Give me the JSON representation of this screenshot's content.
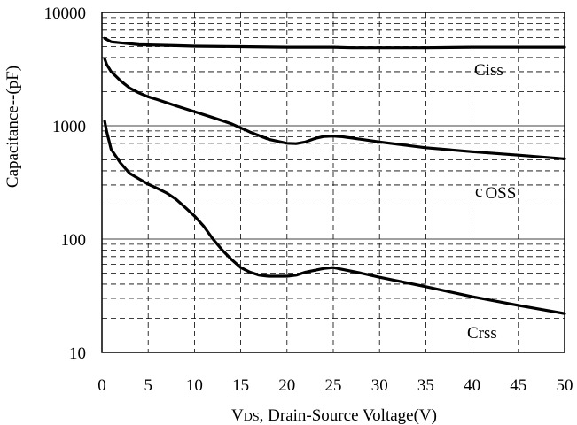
{
  "chart_data": {
    "type": "line",
    "title": "",
    "xlabel": {
      "prefix": "V",
      "subscript": "DS",
      "rest": ", Drain-Source Voltage(V)"
    },
    "ylabel": "Capacitance--(pF)",
    "xlim": [
      0,
      50
    ],
    "ylim": [
      10,
      10000
    ],
    "yscale": "log",
    "grid": true,
    "x_ticks": [
      "0",
      "5",
      "10",
      "15",
      "20",
      "25",
      "30",
      "35",
      "40",
      "45",
      "50"
    ],
    "y_ticks": [
      "10",
      "100",
      "1000",
      "10000"
    ],
    "series": [
      {
        "name": "Ciss",
        "label_parts": [
          "Ciss"
        ],
        "x": [
          0.3,
          1,
          2,
          4,
          6,
          8,
          10,
          15,
          20,
          25,
          27,
          30,
          35,
          40,
          45,
          50
        ],
        "y": [
          5900,
          5500,
          5400,
          5200,
          5150,
          5100,
          5050,
          5000,
          4950,
          4950,
          4900,
          4900,
          4900,
          4950,
          4950,
          4950
        ]
      },
      {
        "name": "Coss",
        "label_parts": [
          "c",
          "OSS"
        ],
        "x": [
          0.3,
          0.5,
          1,
          2,
          3,
          4,
          5,
          6,
          8,
          10,
          12,
          14,
          16,
          18,
          20,
          21,
          22,
          23,
          24,
          25,
          26,
          28,
          30,
          35,
          40,
          45,
          50
        ],
        "y": [
          3900,
          3500,
          3000,
          2500,
          2150,
          1950,
          1800,
          1700,
          1500,
          1330,
          1180,
          1040,
          880,
          760,
          700,
          695,
          720,
          770,
          805,
          810,
          800,
          760,
          720,
          640,
          590,
          550,
          510
        ]
      },
      {
        "name": "Crss",
        "label_parts": [
          "Crss"
        ],
        "x": [
          0.3,
          0.5,
          1,
          2,
          3,
          4,
          5,
          6,
          7,
          8,
          9,
          10,
          11,
          12,
          13,
          14,
          15,
          16,
          17,
          18,
          19,
          20,
          21,
          22,
          23,
          24,
          25,
          26,
          28,
          30,
          35,
          40,
          45,
          50
        ],
        "y": [
          1100,
          900,
          620,
          470,
          380,
          340,
          305,
          280,
          255,
          225,
          190,
          160,
          130,
          100,
          80,
          66,
          56,
          51,
          48,
          47,
          47,
          47,
          48,
          51,
          53,
          55,
          56,
          54,
          50,
          46,
          38,
          31,
          26,
          22
        ]
      }
    ]
  }
}
